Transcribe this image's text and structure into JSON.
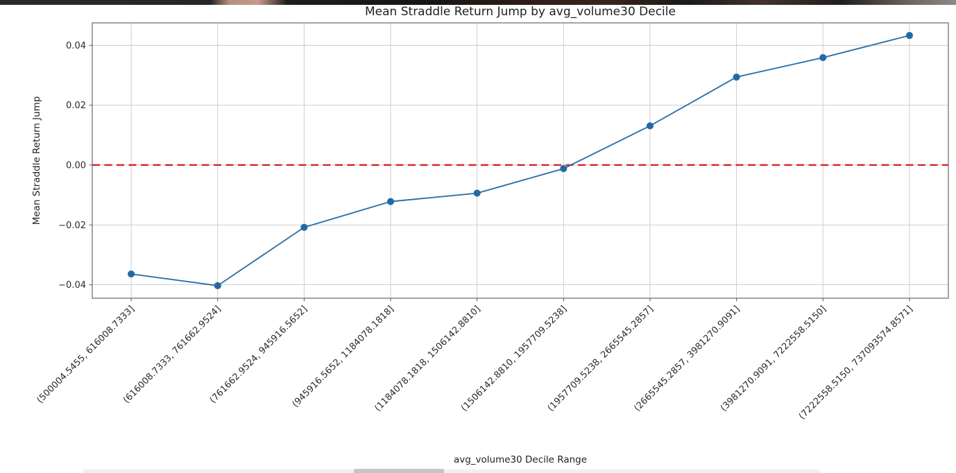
{
  "chart_data": {
    "type": "line",
    "title": "Mean Straddle Return Jump by avg_volume30 Decile",
    "xlabel": "avg_volume30 Decile Range",
    "ylabel": "Mean Straddle Return Jump",
    "categories": [
      "(500004.5455, 616008.7333]",
      "(616008.7333, 761662.9524]",
      "(761662.9524, 945916.5652]",
      "(945916.5652, 1184078.1818]",
      "(1184078.1818, 1506142.8810]",
      "(1506142.8810, 1957709.5238]",
      "(1957709.5238, 2665545.2857]",
      "(2665545.2857, 3981270.9091]",
      "(3981270.9091, 7222558.5150]",
      "(7222558.5150, 737093574.8571]"
    ],
    "values": [
      -0.0364,
      -0.0403,
      -0.0208,
      -0.0122,
      -0.0094,
      -0.0012,
      0.0131,
      0.0294,
      0.0359,
      0.0433
    ],
    "yticks": [
      0.04,
      0.02,
      0.0,
      -0.02,
      -0.04
    ],
    "ylim": [
      -0.0445,
      0.0475
    ],
    "grid": true,
    "legend": "none",
    "zero_line": {
      "y": 0.0,
      "style": "dashed"
    },
    "colors": {
      "line": "#2d71a8",
      "marker_fill": "#2469a2",
      "marker_edge": "#2d71a8",
      "zero_line": "#d62222",
      "grid": "#c9c9c9",
      "spine": "#5a5a5a",
      "tick_text": "#2b2b2b",
      "title_text": "#1f1f1f"
    }
  },
  "decorations": {
    "top_strip_stops": [
      [
        "0%",
        "#2a2a2a"
      ],
      [
        "22%",
        "#262626"
      ],
      [
        "24%",
        "#b68f80"
      ],
      [
        "27%",
        "#c59a8a"
      ],
      [
        "30%",
        "#201d1c"
      ],
      [
        "45%",
        "#171615"
      ],
      [
        "55%",
        "#2e1d18"
      ],
      [
        "63%",
        "#3a241c"
      ],
      [
        "72%",
        "#1c1a19"
      ],
      [
        "80%",
        "#43322c"
      ],
      [
        "88%",
        "#201e1d"
      ],
      [
        "95%",
        "#6e625c"
      ],
      [
        "100%",
        "#8d8a86"
      ]
    ],
    "bottom_strip_color": "#e3e3e3",
    "bottom_strip_dark_color": "#bdbdbd"
  }
}
